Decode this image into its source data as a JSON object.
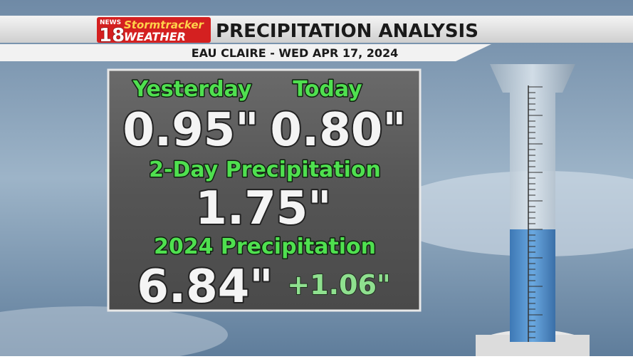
{
  "header": {
    "logo_top": "NEWS",
    "logo_number": "18",
    "logo_brand": "Stormtracker",
    "logo_weather": "WEATHER",
    "title": "PRECIPITATION ANALYSIS",
    "subtitle": "EAU CLAIRE - WED APR 17, 2024"
  },
  "panel": {
    "yesterday": {
      "label": "Yesterday",
      "value": "0.95\""
    },
    "today": {
      "label": "Today",
      "value": "0.80\""
    },
    "two_day": {
      "label": "2-Day Precipitation",
      "value": "1.75\""
    },
    "year": {
      "label": "2024 Precipitation",
      "value": "6.84\"",
      "departure": "+1.06\""
    }
  }
}
